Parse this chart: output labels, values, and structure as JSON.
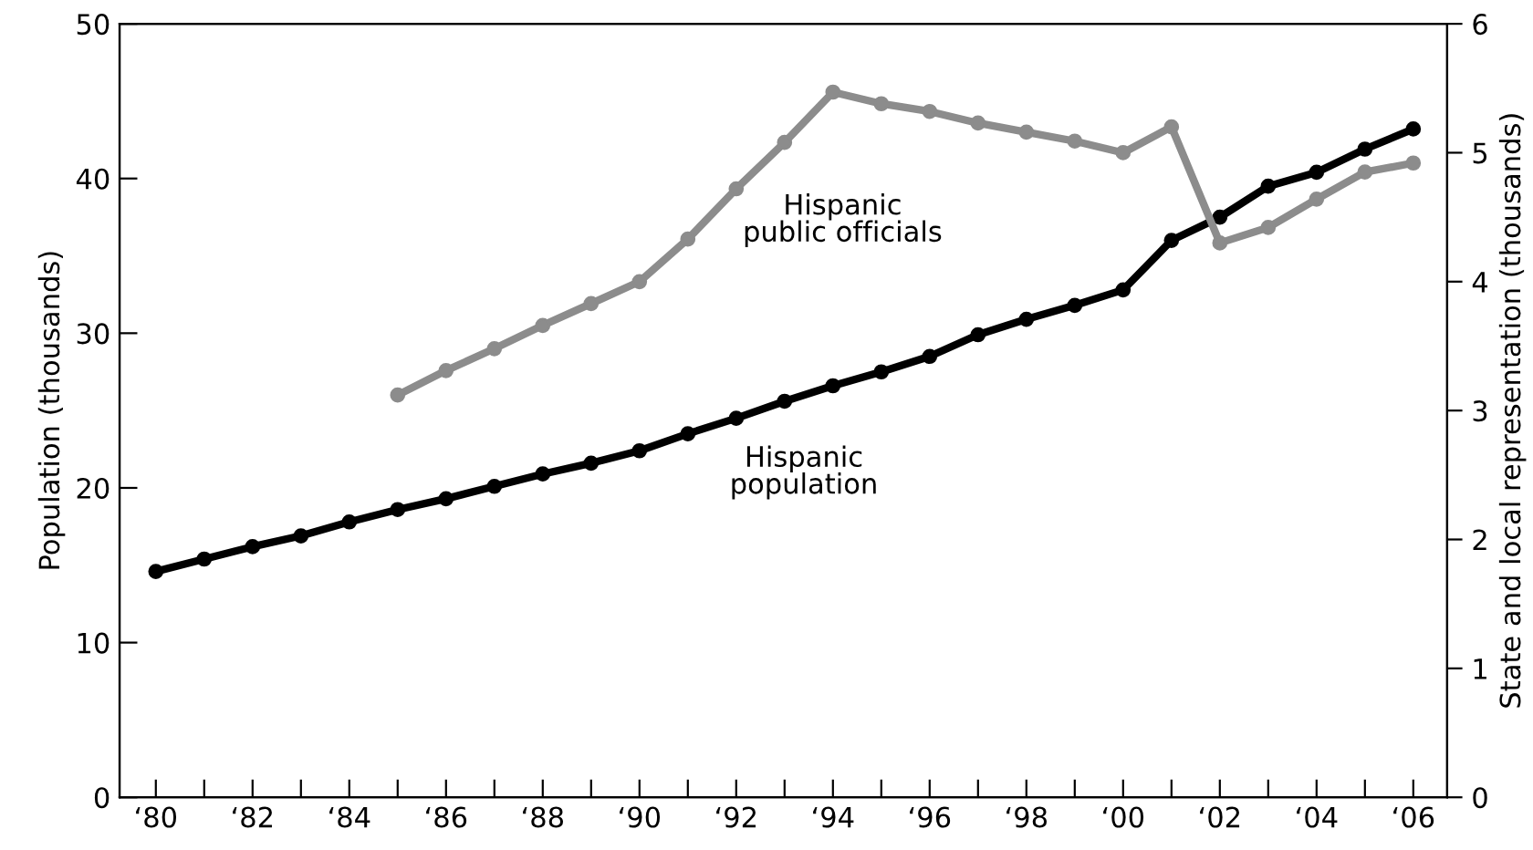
{
  "chart_data": {
    "type": "line",
    "ylabel": "Population (thousands)",
    "y2label": "State and local representation (thousands)",
    "categories": [
      "‘80",
      null,
      "‘82",
      null,
      "‘84",
      null,
      "‘86",
      null,
      "‘88",
      null,
      "‘90",
      null,
      "‘92",
      null,
      "‘94",
      null,
      "‘96",
      null,
      "‘98",
      null,
      "‘00",
      null,
      "‘02",
      null,
      "‘04",
      null,
      "‘06"
    ],
    "ylim": [
      0,
      50
    ],
    "yticks": [
      0,
      10,
      20,
      30,
      40,
      50
    ],
    "y2lim": [
      0,
      6
    ],
    "y2ticks": [
      0,
      1,
      2,
      3,
      4,
      5,
      6
    ],
    "marker": "circle",
    "line_style": "solid",
    "grid": false,
    "legend": false,
    "series": [
      {
        "name": "Hispanic population",
        "color": "#000000",
        "values": [
          14.6,
          15.4,
          16.2,
          16.9,
          17.8,
          18.6,
          19.3,
          20.1,
          20.9,
          21.6,
          22.4,
          23.5,
          24.5,
          25.6,
          26.6,
          27.5,
          28.5,
          29.9,
          30.9,
          31.8,
          32.8,
          36.0,
          37.5,
          39.5,
          40.4,
          41.9,
          43.2
        ]
      },
      {
        "name": "Hispanic public officials",
        "color": "#8c8c8c",
        "axis": "y2",
        "values": [
          null,
          null,
          null,
          null,
          null,
          3.12,
          3.31,
          3.48,
          3.66,
          3.83,
          4.0,
          4.33,
          4.72,
          5.08,
          5.47,
          5.38,
          5.32,
          5.23,
          5.16,
          5.09,
          5.0,
          5.2,
          4.3,
          4.42,
          4.64,
          4.85,
          4.92
        ]
      }
    ]
  }
}
